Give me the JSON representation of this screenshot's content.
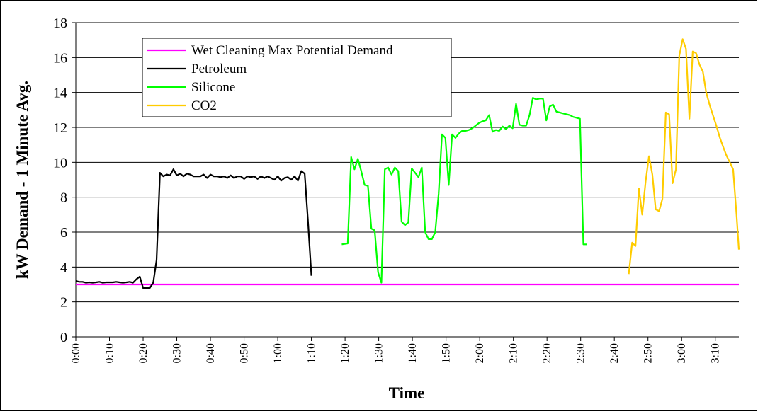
{
  "chart_data": {
    "type": "line",
    "xlabel": "Time",
    "ylabel": "kW Demand - 1 Minute Avg.",
    "ylim": [
      0,
      18
    ],
    "yticks": [
      0,
      2,
      4,
      6,
      8,
      10,
      12,
      14,
      16,
      18
    ],
    "x_unit": "minutes",
    "xlim": [
      0,
      197
    ],
    "xticks": [
      {
        "min": 0,
        "label": "0:00"
      },
      {
        "min": 10,
        "label": "0:10"
      },
      {
        "min": 20,
        "label": "0:20"
      },
      {
        "min": 30,
        "label": "0:30"
      },
      {
        "min": 40,
        "label": "0:40"
      },
      {
        "min": 50,
        "label": "0:50"
      },
      {
        "min": 60,
        "label": "1:00"
      },
      {
        "min": 70,
        "label": "1:10"
      },
      {
        "min": 80,
        "label": "1:20"
      },
      {
        "min": 90,
        "label": "1:30"
      },
      {
        "min": 100,
        "label": "1:40"
      },
      {
        "min": 110,
        "label": "1:50"
      },
      {
        "min": 120,
        "label": "2:00"
      },
      {
        "min": 130,
        "label": "2:10"
      },
      {
        "min": 140,
        "label": "2:20"
      },
      {
        "min": 150,
        "label": "2:30"
      },
      {
        "min": 160,
        "label": "2:40"
      },
      {
        "min": 170,
        "label": "2:50"
      },
      {
        "min": 180,
        "label": "3:00"
      },
      {
        "min": 190,
        "label": "3:10"
      }
    ],
    "grid": "horizontal",
    "legend_position": "top-left",
    "series": [
      {
        "name": "Wet Cleaning Max Potential Demand",
        "color": "#ff00ff",
        "points": [
          [
            0,
            3.0
          ],
          [
            197,
            3.0
          ]
        ]
      },
      {
        "name": "Petroleum",
        "color": "#000000",
        "points": [
          [
            0,
            3.2
          ],
          [
            1,
            3.15
          ],
          [
            2,
            3.15
          ],
          [
            3,
            3.1
          ],
          [
            4,
            3.12
          ],
          [
            5,
            3.1
          ],
          [
            6,
            3.12
          ],
          [
            7,
            3.15
          ],
          [
            8,
            3.1
          ],
          [
            9,
            3.12
          ],
          [
            10,
            3.12
          ],
          [
            11,
            3.12
          ],
          [
            12,
            3.15
          ],
          [
            13,
            3.12
          ],
          [
            14,
            3.1
          ],
          [
            15,
            3.12
          ],
          [
            16,
            3.15
          ],
          [
            17,
            3.1
          ],
          [
            18,
            3.3
          ],
          [
            19,
            3.45
          ],
          [
            20,
            2.8
          ],
          [
            21,
            2.8
          ],
          [
            22,
            2.8
          ],
          [
            23,
            3.1
          ],
          [
            24,
            4.4
          ],
          [
            25,
            9.4
          ],
          [
            26,
            9.2
          ],
          [
            27,
            9.3
          ],
          [
            28,
            9.25
          ],
          [
            29,
            9.6
          ],
          [
            30,
            9.25
          ],
          [
            31,
            9.35
          ],
          [
            32,
            9.2
          ],
          [
            33,
            9.35
          ],
          [
            34,
            9.3
          ],
          [
            35,
            9.2
          ],
          [
            36,
            9.2
          ],
          [
            37,
            9.2
          ],
          [
            38,
            9.3
          ],
          [
            39,
            9.1
          ],
          [
            40,
            9.3
          ],
          [
            41,
            9.2
          ],
          [
            42,
            9.2
          ],
          [
            43,
            9.15
          ],
          [
            44,
            9.2
          ],
          [
            45,
            9.1
          ],
          [
            46,
            9.25
          ],
          [
            47,
            9.1
          ],
          [
            48,
            9.2
          ],
          [
            49,
            9.2
          ],
          [
            50,
            9.05
          ],
          [
            51,
            9.2
          ],
          [
            52,
            9.15
          ],
          [
            53,
            9.2
          ],
          [
            54,
            9.05
          ],
          [
            55,
            9.2
          ],
          [
            56,
            9.1
          ],
          [
            57,
            9.2
          ],
          [
            58,
            9.1
          ],
          [
            59,
            9.0
          ],
          [
            60,
            9.2
          ],
          [
            61,
            8.95
          ],
          [
            62,
            9.1
          ],
          [
            63,
            9.15
          ],
          [
            64,
            9.0
          ],
          [
            65,
            9.2
          ],
          [
            66,
            8.95
          ],
          [
            67,
            9.5
          ],
          [
            68,
            9.35
          ],
          [
            69,
            6.6
          ],
          [
            70,
            3.5
          ]
        ]
      },
      {
        "name": "Silicone",
        "color": "#00ff00",
        "points": [
          [
            79,
            5.3
          ],
          [
            80.8,
            5.35
          ],
          [
            81.8,
            10.3
          ],
          [
            82.8,
            9.6
          ],
          [
            83.8,
            10.2
          ],
          [
            84.8,
            9.5
          ],
          [
            85.8,
            8.7
          ],
          [
            86.8,
            8.65
          ],
          [
            87.8,
            6.2
          ],
          [
            88.8,
            6.1
          ],
          [
            89.8,
            3.7
          ],
          [
            90.8,
            3.1
          ],
          [
            91.8,
            9.6
          ],
          [
            92.8,
            9.7
          ],
          [
            93.8,
            9.3
          ],
          [
            94.8,
            9.7
          ],
          [
            95.8,
            9.5
          ],
          [
            96.8,
            6.6
          ],
          [
            97.8,
            6.4
          ],
          [
            98.8,
            6.55
          ],
          [
            99.8,
            9.65
          ],
          [
            100.8,
            9.4
          ],
          [
            101.8,
            9.15
          ],
          [
            102.8,
            9.7
          ],
          [
            103.8,
            6.0
          ],
          [
            104.8,
            5.6
          ],
          [
            105.8,
            5.6
          ],
          [
            106.8,
            6.0
          ],
          [
            107.8,
            8.2
          ],
          [
            108.8,
            11.6
          ],
          [
            109.8,
            11.4
          ],
          [
            110.8,
            8.7
          ],
          [
            111.8,
            11.6
          ],
          [
            112.8,
            11.4
          ],
          [
            113.8,
            11.65
          ],
          [
            114.8,
            11.8
          ],
          [
            115.8,
            11.8
          ],
          [
            116.8,
            11.85
          ],
          [
            117.8,
            11.95
          ],
          [
            118.8,
            12.1
          ],
          [
            119.8,
            12.25
          ],
          [
            120.8,
            12.35
          ],
          [
            121.8,
            12.4
          ],
          [
            122.8,
            12.7
          ],
          [
            123.8,
            11.75
          ],
          [
            124.8,
            11.85
          ],
          [
            125.8,
            11.8
          ],
          [
            126.8,
            12.05
          ],
          [
            127.8,
            11.9
          ],
          [
            128.8,
            12.1
          ],
          [
            129.8,
            11.95
          ],
          [
            130.8,
            13.35
          ],
          [
            131.8,
            12.15
          ],
          [
            132.8,
            12.1
          ],
          [
            133.8,
            12.1
          ],
          [
            134.8,
            12.7
          ],
          [
            135.8,
            13.7
          ],
          [
            136.8,
            13.6
          ],
          [
            137.8,
            13.65
          ],
          [
            138.8,
            13.65
          ],
          [
            139.8,
            12.4
          ],
          [
            140.8,
            13.2
          ],
          [
            141.8,
            13.3
          ],
          [
            142.8,
            12.9
          ],
          [
            143.8,
            12.85
          ],
          [
            144.8,
            12.8
          ],
          [
            145.8,
            12.75
          ],
          [
            146.8,
            12.7
          ],
          [
            147.8,
            12.6
          ],
          [
            148.8,
            12.55
          ],
          [
            149.8,
            12.5
          ],
          [
            150.8,
            5.3
          ],
          [
            151.8,
            5.3
          ]
        ]
      },
      {
        "name": "CO2",
        "color": "#ffcc00",
        "points": [
          [
            164.3,
            3.6
          ],
          [
            165.3,
            5.4
          ],
          [
            166.3,
            5.2
          ],
          [
            167.3,
            8.5
          ],
          [
            168.3,
            7.0
          ],
          [
            169.3,
            8.9
          ],
          [
            170.3,
            10.35
          ],
          [
            171.3,
            9.3
          ],
          [
            172.3,
            7.3
          ],
          [
            173.3,
            7.2
          ],
          [
            174.3,
            7.9
          ],
          [
            175.3,
            12.85
          ],
          [
            176.3,
            12.75
          ],
          [
            177.3,
            8.8
          ],
          [
            178.3,
            9.6
          ],
          [
            179.3,
            16.1
          ],
          [
            180.3,
            17.05
          ],
          [
            181.3,
            16.5
          ],
          [
            182.3,
            12.5
          ],
          [
            183.3,
            16.35
          ],
          [
            184.3,
            16.25
          ],
          [
            185.3,
            15.6
          ],
          [
            186.3,
            15.2
          ],
          [
            187.3,
            14.0
          ],
          [
            188.3,
            13.3
          ],
          [
            189.3,
            12.7
          ],
          [
            190.3,
            12.1
          ],
          [
            191.3,
            11.45
          ],
          [
            192.3,
            10.9
          ],
          [
            193.3,
            10.4
          ],
          [
            194.3,
            10.0
          ],
          [
            195.3,
            9.6
          ],
          [
            196.3,
            7.0
          ],
          [
            197,
            5.0
          ]
        ]
      }
    ]
  }
}
